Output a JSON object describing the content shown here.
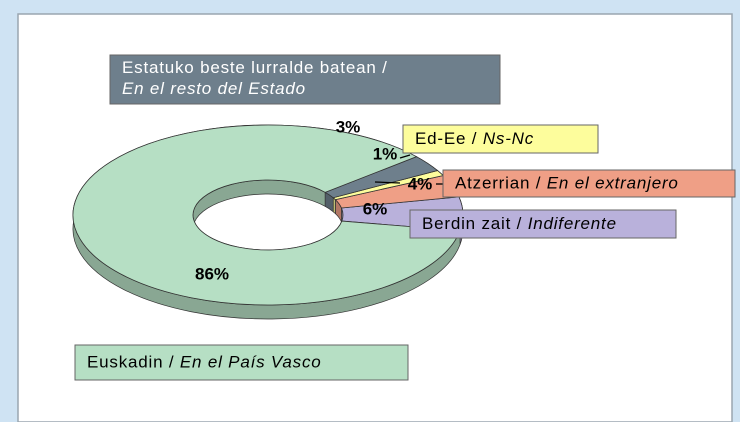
{
  "chart_data": {
    "type": "donut",
    "categories": [
      "Berdin zait / Indiferente",
      "Atzerrian / En el extranjero",
      "Ed-Ee / Ns-Nc",
      "Estatuko beste lurralde batean / En el resto del Estado",
      "Euskadin / En el País Vasco"
    ],
    "values": [
      6,
      4,
      1,
      3,
      86
    ],
    "value_labels": [
      "6%",
      "4%",
      "1%",
      "3%",
      "86%"
    ],
    "colors": [
      "#b9b1db",
      "#ef9f86",
      "#fdfd9c",
      "#6e7f8c",
      "#b6dfc4"
    ]
  }
}
